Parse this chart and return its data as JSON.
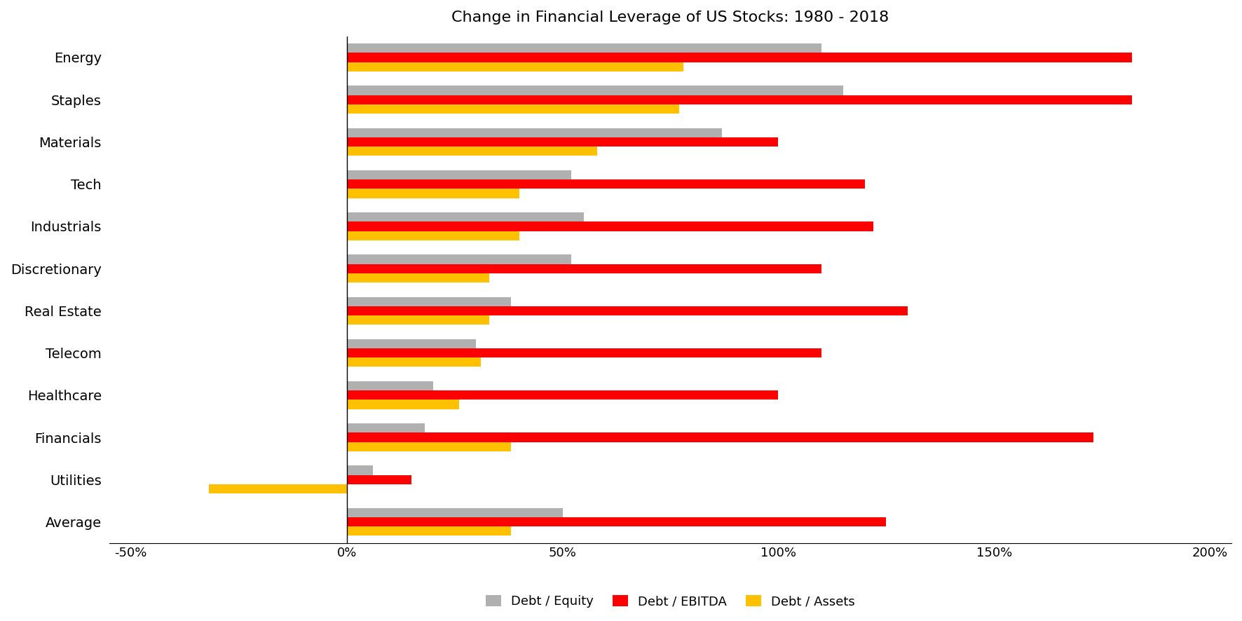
{
  "title": "Change in Financial Leverage of US Stocks: 1980 - 2018",
  "categories": [
    "Energy",
    "Staples",
    "Materials",
    "Tech",
    "Industrials",
    "Discretionary",
    "Real Estate",
    "Telecom",
    "Healthcare",
    "Financials",
    "Utilities",
    "Average"
  ],
  "debt_equity": [
    1.1,
    1.15,
    0.87,
    0.52,
    0.55,
    0.52,
    0.38,
    0.3,
    0.2,
    0.18,
    0.06,
    0.5
  ],
  "debt_ebitda": [
    1.82,
    1.82,
    1.0,
    1.2,
    1.22,
    1.1,
    1.3,
    1.1,
    1.0,
    1.73,
    0.15,
    1.25
  ],
  "debt_assets": [
    0.78,
    0.77,
    0.58,
    0.4,
    0.4,
    0.33,
    0.33,
    0.31,
    0.26,
    0.38,
    -0.32,
    0.38
  ],
  "colors": {
    "debt_equity": "#b0b0b0",
    "debt_ebitda": "#ff0000",
    "debt_assets": "#ffc000"
  },
  "xlim": [
    -0.55,
    2.05
  ],
  "xticks": [
    -0.5,
    0.0,
    0.5,
    1.0,
    1.5,
    2.0
  ],
  "xtick_labels": [
    "-50%",
    "0%",
    "50%",
    "100%",
    "150%",
    "200%"
  ],
  "legend_labels": [
    "Debt / Equity",
    "Debt / EBITDA",
    "Debt / Assets"
  ],
  "bar_height": 0.22,
  "figsize": [
    17.72,
    8.86
  ],
  "dpi": 100
}
